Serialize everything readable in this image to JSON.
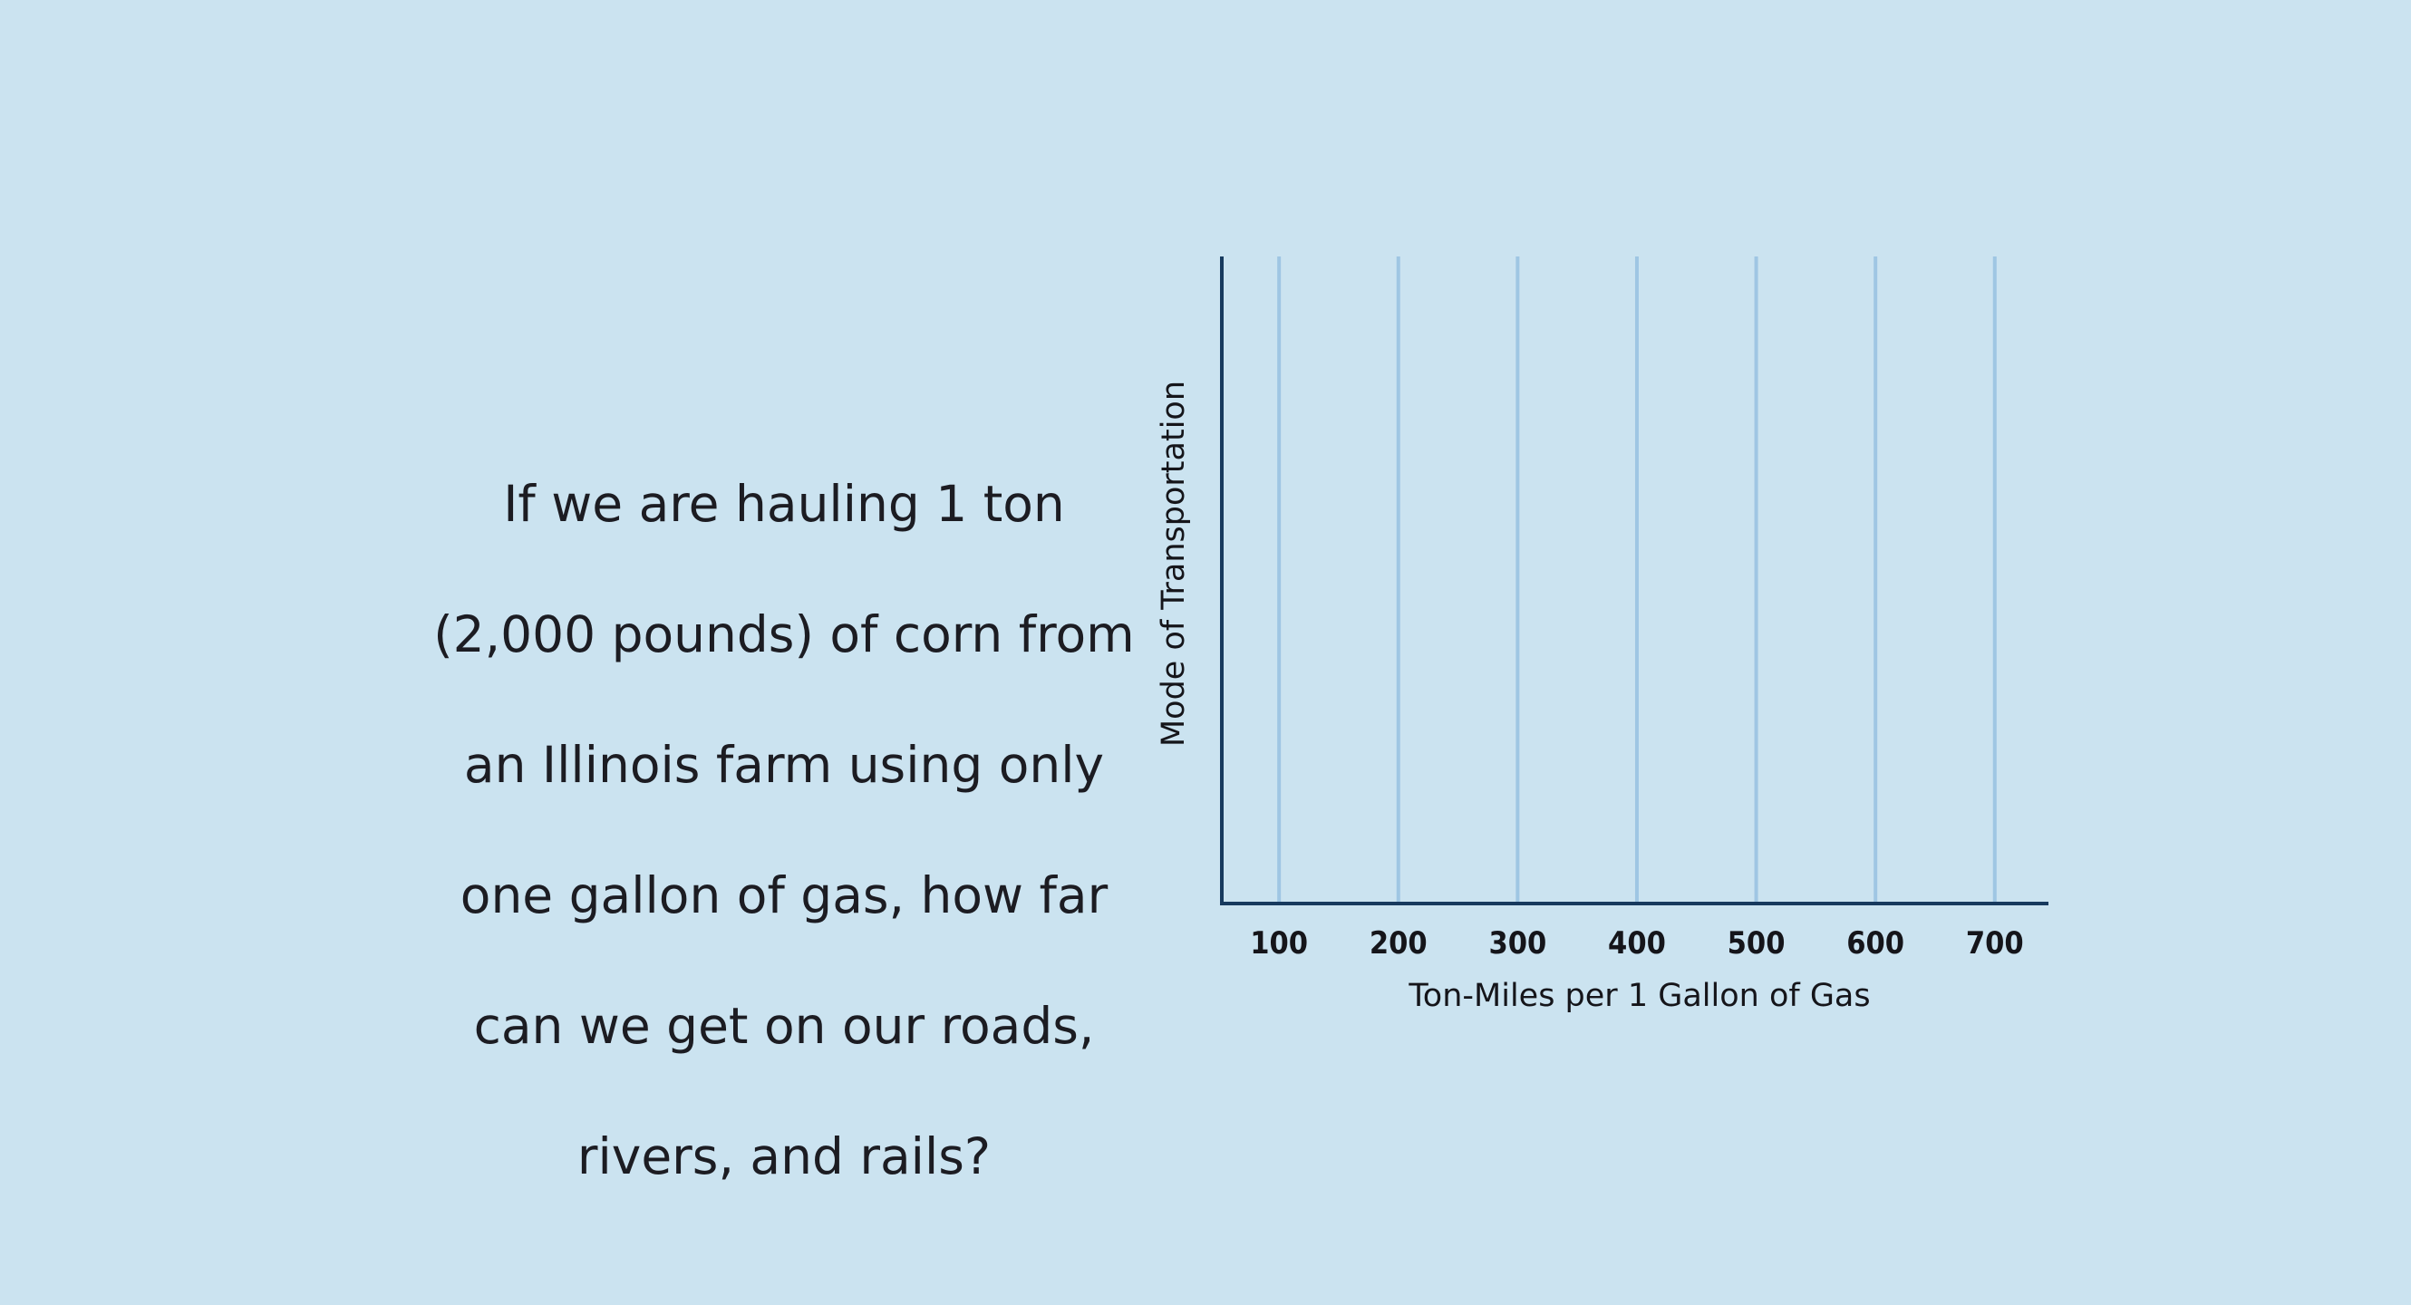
{
  "question": {
    "lines": [
      "If we are hauling 1 ton",
      "(2,000 pounds) of corn from",
      "an Illinois farm using only",
      "one gallon of gas, how far",
      "can we get on our roads,",
      "rivers, and rails?"
    ]
  },
  "chart_data": {
    "type": "bar",
    "orientation": "horizontal",
    "categories": [],
    "values": [],
    "title": "",
    "xlabel": "Ton-Miles per 1 Gallon of Gas",
    "ylabel": "Mode of Transportation",
    "x_ticks": [
      100,
      200,
      300,
      400,
      500,
      600,
      700
    ],
    "x_tick_labels": [
      "100",
      "200",
      "300",
      "400",
      "500",
      "600",
      "700"
    ],
    "xlim": [
      52,
      745
    ],
    "grid": "vertical",
    "colors": {
      "background": "#cbe3f0",
      "gridline": "#9fc6e3",
      "axis": "#173a5e",
      "text": "#15151a"
    }
  }
}
